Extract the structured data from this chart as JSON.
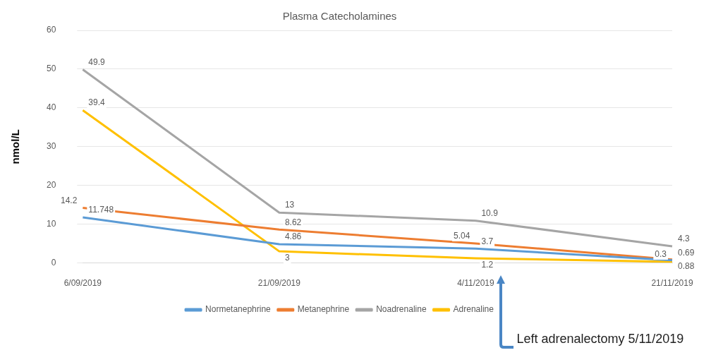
{
  "chart_data": {
    "type": "line",
    "title": "Plasma Catecholamines",
    "ylabel": "nmol/L",
    "categories": [
      "6/09/2019",
      "21/09/2019",
      "4/11/2019",
      "21/11/2019"
    ],
    "series": [
      {
        "name": "Normetanephrine",
        "color": "#5b9bd5",
        "values": [
          11.748,
          4.86,
          3.7,
          0.69
        ]
      },
      {
        "name": "Metanephrine",
        "color": "#ed7d31",
        "values": [
          14.2,
          8.62,
          5.04,
          0.88
        ]
      },
      {
        "name": "Noadrenaline",
        "color": "#a5a5a5",
        "values": [
          49.9,
          13,
          10.9,
          4.3
        ]
      },
      {
        "name": "Adrenaline",
        "color": "#ffc000",
        "values": [
          39.4,
          3,
          1.2,
          0.3
        ]
      }
    ],
    "ylim": [
      0,
      60
    ],
    "yticks": [
      0,
      10,
      20,
      30,
      40,
      50,
      60
    ],
    "grid": "y",
    "legend": "bottom",
    "marker": "none",
    "line_style": "solid",
    "data_labels": true,
    "annotations": [
      "Left adrenalectomy 5/11/2019"
    ]
  }
}
